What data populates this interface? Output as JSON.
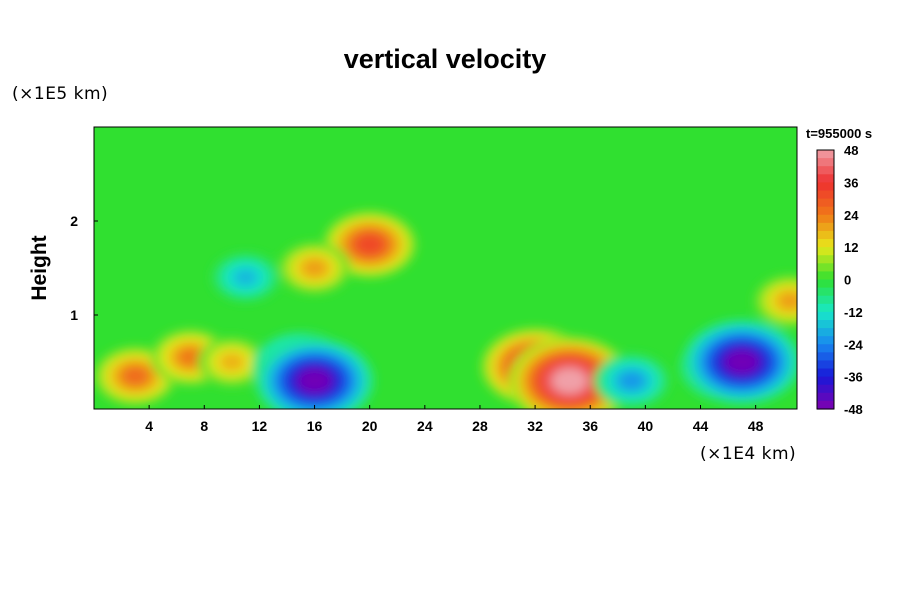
{
  "chart_data": {
    "type": "heatmap",
    "title": "vertical velocity",
    "xlabel": "",
    "ylabel": "Height",
    "x_unit_label": "(×1E4 km)",
    "y_unit_label": "(×1E5 km)",
    "time_label": "t=955000 s",
    "xlim": [
      0,
      51
    ],
    "ylim": [
      0,
      3
    ],
    "x_ticks": [
      4,
      8,
      12,
      16,
      20,
      24,
      28,
      32,
      36,
      40,
      44,
      48
    ],
    "y_ticks": [
      1,
      2
    ],
    "colorbar": {
      "min": -48,
      "max": 48,
      "ticks": [
        48,
        36,
        24,
        12,
        0,
        -12,
        -24,
        -36,
        -48
      ],
      "colors": [
        "#f0a0a8",
        "#ee3030",
        "#f07818",
        "#e8e81a",
        "#30e030",
        "#18e8c8",
        "#1888f0",
        "#1818d8",
        "#8000b0"
      ]
    },
    "features": [
      {
        "x": 3,
        "y": 0.35,
        "value": 26
      },
      {
        "x": 7,
        "y": 0.55,
        "value": 24
      },
      {
        "x": 10,
        "y": 0.5,
        "value": 18
      },
      {
        "x": 15,
        "y": 0.45,
        "value": -34
      },
      {
        "x": 16,
        "y": 0.3,
        "value": -46
      },
      {
        "x": 20,
        "y": 1.75,
        "value": 32
      },
      {
        "x": 16,
        "y": 1.5,
        "value": 20
      },
      {
        "x": 32,
        "y": 0.45,
        "value": 40
      },
      {
        "x": 34.5,
        "y": 0.3,
        "value": 48
      },
      {
        "x": 39,
        "y": 0.3,
        "value": -22
      },
      {
        "x": 46,
        "y": 0.45,
        "value": -34
      },
      {
        "x": 47,
        "y": 0.5,
        "value": -46
      },
      {
        "x": 11,
        "y": 1.4,
        "value": -18
      },
      {
        "x": 50.5,
        "y": 1.15,
        "value": 20
      }
    ]
  }
}
